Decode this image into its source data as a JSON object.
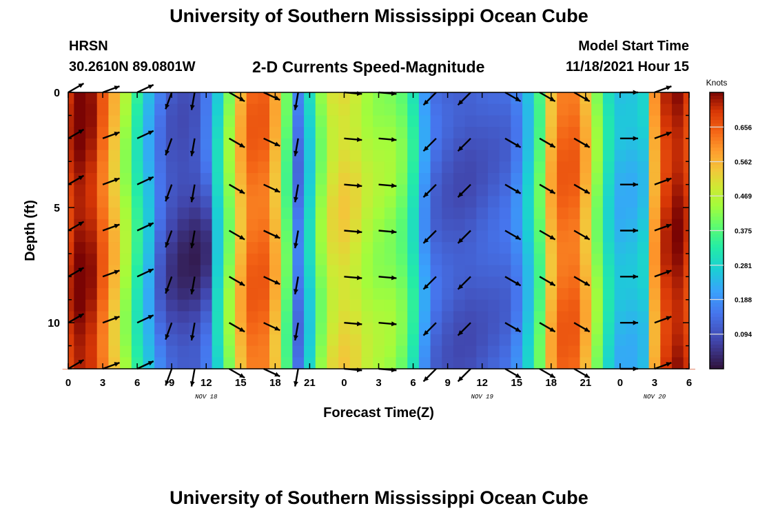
{
  "header": {
    "title": "University of Southern Mississippi Ocean Cube",
    "station": "HRSN",
    "coords": "30.2610N  89.0801W",
    "subtitle": "2-D Currents Speed-Magnitude",
    "model_start_label": "Model Start Time",
    "model_start_value": "11/18/2021 Hour 15"
  },
  "footer": {
    "title_repeat": "University of Southern Mississippi Ocean Cube"
  },
  "chart_data": {
    "type": "heatmap",
    "xlabel": "Forecast Time(Z)",
    "ylabel": "Depth (ft)",
    "x_tick_labels": [
      "0",
      "3",
      "6",
      "9",
      "12",
      "15",
      "18",
      "21",
      "0",
      "3",
      "6",
      "9",
      "12",
      "15",
      "18",
      "21",
      "0",
      "3",
      "6"
    ],
    "date_labels": [
      {
        "label": "NOV 18",
        "hour_index": 12
      },
      {
        "label": "NOV 19",
        "hour_index": 36
      },
      {
        "label": "NOV 20",
        "hour_index": 51
      }
    ],
    "y_ticks": [
      0,
      5,
      10
    ],
    "ylim": [
      0,
      12
    ],
    "colorbar": {
      "title": "Knots",
      "ticks": [
        0.656,
        0.562,
        0.469,
        0.375,
        0.281,
        0.188,
        0.094
      ],
      "range": [
        0,
        0.75
      ]
    },
    "speed_by_hour_knots": [
      0.7,
      0.74,
      0.72,
      0.64,
      0.55,
      0.44,
      0.33,
      0.24,
      0.17,
      0.12,
      0.11,
      0.12,
      0.18,
      0.28,
      0.42,
      0.56,
      0.64,
      0.64,
      0.56,
      0.38,
      0.15,
      0.28,
      0.42,
      0.5,
      0.52,
      0.5,
      0.46,
      0.44,
      0.43,
      0.4,
      0.32,
      0.2,
      0.13,
      0.11,
      0.1,
      0.1,
      0.11,
      0.12,
      0.13,
      0.17,
      0.26,
      0.38,
      0.56,
      0.64,
      0.64,
      0.56,
      0.42,
      0.3,
      0.24,
      0.24,
      0.26,
      0.58,
      0.7,
      0.73,
      0.69
    ],
    "center_low_hour": 11,
    "center_low_depth_ft": 7,
    "center_low_knots": 0.02,
    "arrow_hours": [
      0,
      3,
      6,
      9,
      11,
      14,
      17,
      20,
      24,
      27,
      32,
      35,
      38,
      41,
      44,
      48,
      51
    ],
    "arrow_depths_ft": [
      0.0,
      2.0,
      4.0,
      6.0,
      8.0,
      10.0,
      12.0
    ],
    "arrow_directions_deg": [
      30,
      20,
      25,
      -110,
      -100,
      -30,
      -25,
      -100,
      -5,
      -5,
      -135,
      -135,
      -30,
      -30,
      -30,
      0,
      20
    ]
  }
}
